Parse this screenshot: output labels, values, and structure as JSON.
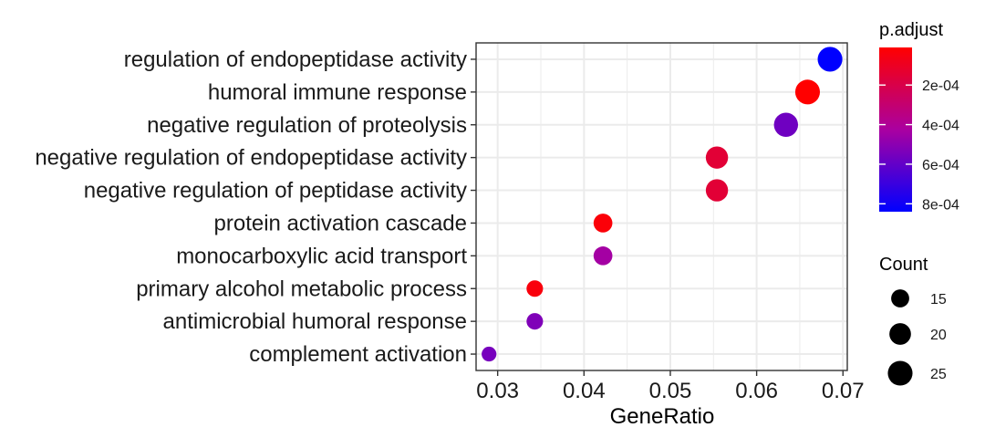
{
  "chart_data": {
    "type": "scatter",
    "xlabel": "GeneRatio",
    "ylabel": "",
    "xlim": [
      0.0275,
      0.0705
    ],
    "xticks": [
      0.03,
      0.04,
      0.05,
      0.06,
      0.07
    ],
    "xtick_labels": [
      "0.03",
      "0.04",
      "0.05",
      "0.06",
      "0.07"
    ],
    "grid": true,
    "legend_position": "right",
    "categories": [
      "regulation of endopeptidase activity",
      "humoral immune response",
      "negative regulation of proteolysis",
      "negative regulation of endopeptidase activity",
      "negative regulation of peptidase activity",
      "protein activation cascade",
      "monocarboxylic acid transport",
      "primary alcohol metabolic process",
      "antimicrobial humoral response",
      "complement activation"
    ],
    "points": [
      {
        "term": "regulation of endopeptidase activity",
        "gene_ratio": 0.0685,
        "count": 25,
        "p_adjust": 0.00084
      },
      {
        "term": "humoral immune response",
        "gene_ratio": 0.0659,
        "count": 25,
        "p_adjust": 1e-05
      },
      {
        "term": "negative regulation of proteolysis",
        "gene_ratio": 0.0634,
        "count": 24,
        "p_adjust": 0.00057
      },
      {
        "term": "negative regulation of endopeptidase activity",
        "gene_ratio": 0.0554,
        "count": 21,
        "p_adjust": 0.00015
      },
      {
        "term": "negative regulation of peptidase activity",
        "gene_ratio": 0.0554,
        "count": 21,
        "p_adjust": 0.00015
      },
      {
        "term": "protein activation cascade",
        "gene_ratio": 0.0422,
        "count": 16,
        "p_adjust": 3e-05
      },
      {
        "term": "monocarboxylic acid transport",
        "gene_ratio": 0.0422,
        "count": 16,
        "p_adjust": 0.00044
      },
      {
        "term": "primary alcohol metabolic process",
        "gene_ratio": 0.0343,
        "count": 13,
        "p_adjust": 4e-05
      },
      {
        "term": "antimicrobial humoral response",
        "gene_ratio": 0.0343,
        "count": 13,
        "p_adjust": 0.00053
      },
      {
        "term": "complement activation",
        "gene_ratio": 0.029,
        "count": 11,
        "p_adjust": 0.00055
      }
    ],
    "color_legend": {
      "title": "p.adjust",
      "tick_values": [
        0.0002,
        0.0004,
        0.0006,
        0.0008
      ],
      "tick_labels": [
        "2e-04",
        "4e-04",
        "6e-04",
        "8e-04"
      ],
      "range": [
        1e-05,
        0.00084
      ],
      "low_color": "#FF0000",
      "high_color": "#0000FF"
    },
    "size_legend": {
      "title": "Count",
      "values": [
        15,
        20,
        25
      ],
      "labels": [
        "15",
        "20",
        "25"
      ]
    }
  }
}
